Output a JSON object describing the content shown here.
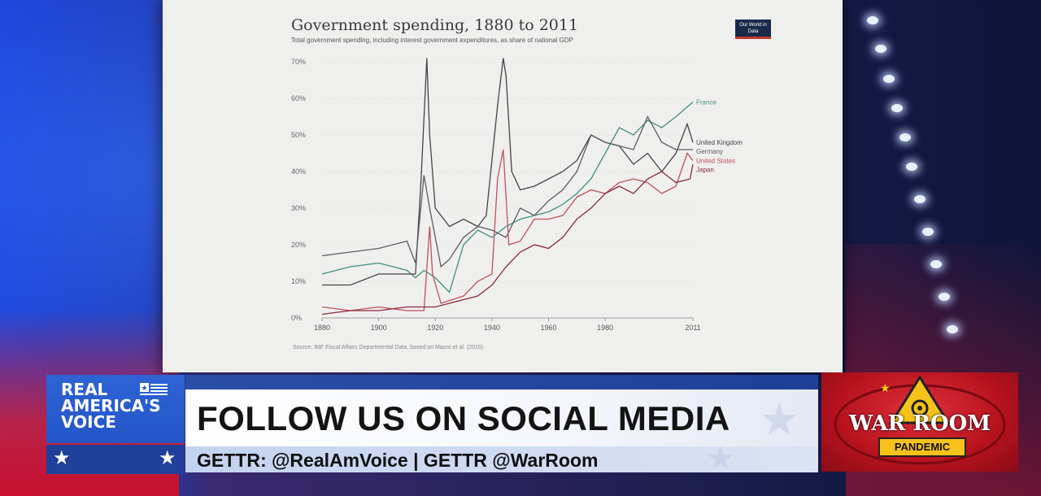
{
  "chart_data": {
    "type": "line",
    "title": "Government spending, 1880 to 2011",
    "subtitle": "Total government spending, including interest government expenditures, as share of national GDP",
    "source": "Source: IMF Fiscal Affairs Departmental Data, based on Mauro et al. (2015)",
    "logo_text": "Our World in Data",
    "x_ticks": [
      "1880",
      "1900",
      "1920",
      "1940",
      "1960",
      "1980",
      "2011"
    ],
    "y_ticks": [
      "0%",
      "10%",
      "20%",
      "30%",
      "40%",
      "50%",
      "60%",
      "70%"
    ],
    "xlim": [
      1880,
      2011
    ],
    "ylim": [
      0,
      70
    ],
    "series": [
      {
        "name": "France",
        "color": "#3f8f7e",
        "x": [
          1880,
          1890,
          1900,
          1910,
          1913,
          1916,
          1920,
          1925,
          1930,
          1935,
          1940,
          1945,
          1950,
          1955,
          1960,
          1965,
          1970,
          1975,
          1980,
          1985,
          1990,
          1995,
          2000,
          2005,
          2011
        ],
        "y": [
          12,
          14,
          15,
          13,
          11,
          13,
          11,
          7,
          20,
          24,
          22,
          25,
          27,
          28,
          29,
          31,
          34,
          38,
          45,
          52,
          50,
          54,
          52,
          55,
          59
        ]
      },
      {
        "name": "United Kingdom",
        "color": "#444444",
        "x": [
          1880,
          1890,
          1900,
          1910,
          1913,
          1915,
          1917,
          1918,
          1920,
          1925,
          1930,
          1935,
          1938,
          1942,
          1944,
          1945,
          1947,
          1950,
          1955,
          1960,
          1965,
          1970,
          1975,
          1980,
          1985,
          1990,
          1995,
          2000,
          2005,
          2009,
          2011
        ],
        "y": [
          9,
          9,
          12,
          12,
          12,
          38,
          71,
          50,
          30,
          25,
          27,
          25,
          28,
          58,
          71,
          66,
          40,
          35,
          36,
          38,
          40,
          43,
          50,
          48,
          47,
          42,
          45,
          40,
          45,
          53,
          48
        ]
      },
      {
        "name": "Germany",
        "color": "#5b5b66",
        "x": [
          1880,
          1890,
          1900,
          1910,
          1913,
          1916,
          1918,
          1922,
          1925,
          1930,
          1935,
          1940,
          1945,
          1950,
          1955,
          1960,
          1965,
          1970,
          1975,
          1980,
          1985,
          1990,
          1995,
          2000,
          2005,
          2011
        ],
        "y": [
          17,
          18,
          19,
          21,
          15,
          39,
          30,
          14,
          16,
          22,
          25,
          24,
          22,
          30,
          28,
          32,
          35,
          40,
          50,
          48,
          47,
          46,
          55,
          48,
          46,
          46
        ]
      },
      {
        "name": "United States",
        "color": "#c0505a",
        "x": [
          1880,
          1890,
          1900,
          1910,
          1916,
          1918,
          1919,
          1922,
          1930,
          1935,
          1940,
          1942,
          1944,
          1946,
          1950,
          1955,
          1960,
          1965,
          1970,
          1975,
          1980,
          1985,
          1990,
          1995,
          2000,
          2005,
          2009,
          2011
        ],
        "y": [
          3,
          2,
          3,
          2,
          2,
          25,
          12,
          4,
          6,
          10,
          12,
          38,
          46,
          20,
          21,
          27,
          27,
          28,
          33,
          35,
          34,
          37,
          38,
          37,
          34,
          36,
          45,
          43
        ]
      },
      {
        "name": "Japan",
        "color": "#8a2a40",
        "x": [
          1880,
          1890,
          1900,
          1910,
          1915,
          1920,
          1925,
          1930,
          1935,
          1940,
          1945,
          1950,
          1955,
          1960,
          1965,
          1970,
          1975,
          1980,
          1985,
          1990,
          1995,
          2000,
          2005,
          2010,
          2011
        ],
        "y": [
          1,
          2,
          2,
          3,
          3,
          3,
          4,
          5,
          6,
          9,
          14,
          18,
          20,
          19,
          22,
          27,
          30,
          34,
          36,
          34,
          38,
          40,
          37,
          38,
          42
        ]
      }
    ]
  },
  "lower_third": {
    "headline": "FOLLOW US ON SOCIAL MEDIA",
    "subline": "GETTR: @RealAmVoice | GETTR @WarRoom"
  },
  "logos": {
    "rav_line1": "REAL",
    "rav_line2": "AMERICA'S",
    "rav_line3": "VOICE",
    "warroom_name": "WAR ROOM",
    "warroom_tag": "PANDEMIC"
  }
}
